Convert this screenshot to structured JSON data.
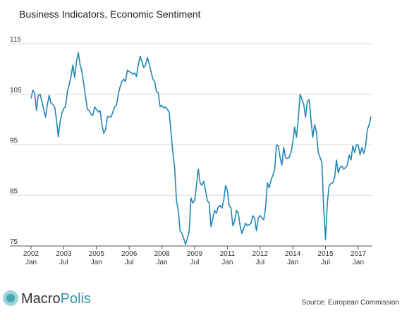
{
  "chart_data": {
    "type": "line",
    "title": "Business Indicators, Economic Sentiment",
    "source": "Source: European Commission",
    "logo": [
      "Macro",
      "Polis"
    ],
    "x": [
      "2002-01",
      "2002-02",
      "2002-03",
      "2002-04",
      "2002-05",
      "2002-06",
      "2002-07",
      "2002-08",
      "2002-09",
      "2002-10",
      "2002-11",
      "2002-12",
      "2003-01",
      "2003-02",
      "2003-03",
      "2003-04",
      "2003-05",
      "2003-06",
      "2003-07",
      "2003-08",
      "2003-09",
      "2003-10",
      "2003-11",
      "2003-12",
      "2004-01",
      "2004-02",
      "2004-03",
      "2004-04",
      "2004-05",
      "2004-06",
      "2004-07",
      "2004-08",
      "2004-09",
      "2004-10",
      "2004-11",
      "2004-12",
      "2005-01",
      "2005-02",
      "2005-03",
      "2005-04",
      "2005-05",
      "2005-06",
      "2005-07",
      "2005-08",
      "2005-09",
      "2005-10",
      "2005-11",
      "2005-12",
      "2006-01",
      "2006-02",
      "2006-03",
      "2006-04",
      "2006-05",
      "2006-06",
      "2006-07",
      "2006-08",
      "2006-09",
      "2006-10",
      "2006-11",
      "2006-12",
      "2007-01",
      "2007-02",
      "2007-03",
      "2007-04",
      "2007-05",
      "2007-06",
      "2007-07",
      "2007-08",
      "2007-09",
      "2007-10",
      "2007-11",
      "2007-12",
      "2008-01",
      "2008-02",
      "2008-03",
      "2008-04",
      "2008-05",
      "2008-06",
      "2008-07",
      "2008-08",
      "2008-09",
      "2008-10",
      "2008-11",
      "2008-12",
      "2009-01",
      "2009-02",
      "2009-03",
      "2009-04",
      "2009-05",
      "2009-06",
      "2009-07",
      "2009-08",
      "2009-09",
      "2009-10",
      "2009-11",
      "2009-12",
      "2010-01",
      "2010-02",
      "2010-03",
      "2010-04",
      "2010-05",
      "2010-06",
      "2010-07",
      "2010-08",
      "2010-09",
      "2010-10",
      "2010-11",
      "2010-12",
      "2011-01",
      "2011-02",
      "2011-03",
      "2011-04",
      "2011-05",
      "2011-06",
      "2011-07",
      "2011-08",
      "2011-09",
      "2011-10",
      "2011-11",
      "2011-12",
      "2012-01",
      "2012-02",
      "2012-03",
      "2012-04",
      "2012-05",
      "2012-06",
      "2012-07",
      "2012-08",
      "2012-09",
      "2012-10",
      "2012-11",
      "2012-12",
      "2013-01",
      "2013-02",
      "2013-03",
      "2013-04",
      "2013-05",
      "2013-06",
      "2013-07",
      "2013-08",
      "2013-09",
      "2013-10",
      "2013-11",
      "2013-12",
      "2014-01",
      "2014-02",
      "2014-03",
      "2014-04",
      "2014-05",
      "2014-06",
      "2014-07",
      "2014-08",
      "2014-09",
      "2014-10",
      "2014-11",
      "2014-12",
      "2015-01",
      "2015-02",
      "2015-03",
      "2015-04",
      "2015-05",
      "2015-06",
      "2015-07",
      "2015-08",
      "2015-09",
      "2015-10",
      "2015-11",
      "2015-12",
      "2016-01",
      "2016-02",
      "2016-03",
      "2016-04",
      "2016-05",
      "2016-06",
      "2016-07",
      "2016-08",
      "2016-09",
      "2016-10",
      "2016-11",
      "2016-12",
      "2017-01",
      "2017-02",
      "2017-03",
      "2017-04",
      "2017-05",
      "2017-06",
      "2017-07",
      "2017-08"
    ],
    "series": [
      {
        "name": "Economic Sentiment",
        "color": "#1f86b5",
        "values": [
          104.2,
          105.8,
          105.3,
          101.8,
          104.8,
          105.0,
          103.5,
          102.0,
          100.5,
          103.0,
          104.8,
          103.2,
          103.0,
          102.5,
          100.0,
          96.6,
          99.5,
          101.3,
          102.2,
          102.6,
          105.5,
          107.0,
          108.5,
          110.8,
          108.3,
          111.5,
          113.2,
          110.8,
          109.5,
          107.0,
          104.5,
          102.0,
          101.8,
          101.0,
          100.8,
          102.5,
          102.0,
          101.5,
          101.8,
          99.0,
          97.3,
          98.0,
          100.5,
          100.6,
          100.5,
          101.5,
          102.5,
          102.8,
          105.0,
          106.5,
          107.5,
          108.0,
          107.5,
          109.8,
          109.5,
          109.3,
          109.0,
          109.2,
          108.5,
          110.8,
          112.5,
          111.5,
          110.3,
          110.8,
          112.3,
          111.0,
          109.5,
          108.0,
          107.5,
          105.5,
          105.3,
          102.5,
          102.8,
          102.3,
          102.5,
          102.0,
          101.5,
          97.5,
          93.5,
          90.5,
          84.0,
          82.0,
          78.0,
          77.5,
          76.5,
          75.3,
          76.5,
          78.0,
          84.5,
          83.5,
          84.0,
          87.0,
          90.2,
          87.5,
          87.0,
          87.8,
          86.0,
          84.0,
          83.5,
          78.8,
          80.5,
          82.0,
          81.5,
          82.8,
          83.0,
          82.5,
          84.0,
          87.0,
          86.0,
          83.0,
          82.5,
          79.0,
          80.0,
          82.0,
          81.5,
          79.0,
          77.5,
          78.5,
          79.5,
          79.0,
          79.2,
          79.5,
          81.0,
          80.5,
          78.0,
          80.5,
          81.0,
          80.5,
          80.2,
          82.5,
          87.5,
          86.5,
          88.0,
          89.0,
          90.0,
          95.0,
          94.8,
          92.5,
          91.0,
          94.5,
          92.5,
          92.3,
          92.5,
          93.5,
          95.5,
          98.5,
          96.5,
          100.0,
          105.0,
          104.0,
          103.0,
          100.5,
          103.5,
          104.0,
          100.0,
          96.5,
          99.0,
          97.5,
          93.5,
          92.5,
          91.5,
          82.5,
          76.3,
          83.5,
          87.0,
          87.3,
          87.5,
          88.5,
          92.0,
          89.5,
          90.5,
          90.8,
          90.2,
          90.5,
          91.0,
          93.0,
          92.0,
          94.8,
          93.5,
          95.0,
          95.0,
          93.0,
          94.5,
          93.3,
          94.5,
          98.0,
          99.0,
          100.6
        ]
      }
    ],
    "xlim": [
      "2002-01",
      "2017-08"
    ],
    "xticks": [
      {
        "value": "2002-01",
        "label": [
          "2002",
          "Jan"
        ]
      },
      {
        "value": "2003-07",
        "label": [
          "2003",
          "Jul"
        ]
      },
      {
        "value": "2005-01",
        "label": [
          "2005",
          "Jan"
        ]
      },
      {
        "value": "2006-07",
        "label": [
          "2006",
          "Jul"
        ]
      },
      {
        "value": "2008-01",
        "label": [
          "2008",
          "Jan"
        ]
      },
      {
        "value": "2009-07",
        "label": [
          "2009",
          "Jul"
        ]
      },
      {
        "value": "2011-01",
        "label": [
          "2011",
          "Jan"
        ]
      },
      {
        "value": "2012-07",
        "label": [
          "2012",
          "Jul"
        ]
      },
      {
        "value": "2014-01",
        "label": [
          "2014",
          "Jan"
        ]
      },
      {
        "value": "2015-07",
        "label": [
          "2015",
          "Jul"
        ]
      },
      {
        "value": "2017-01",
        "label": [
          "2017",
          "Jan"
        ]
      }
    ],
    "ylim": [
      75,
      115
    ],
    "yticks": [
      75,
      85,
      95,
      105,
      115
    ],
    "grid": true
  }
}
